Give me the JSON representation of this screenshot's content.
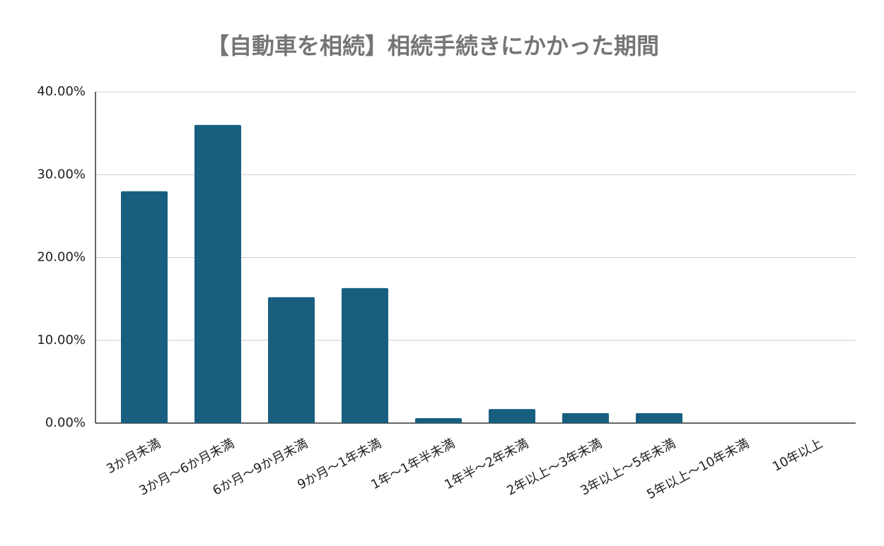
{
  "chart_data": {
    "type": "bar",
    "title": "【自動車を相続】相続手続きにかかった期間",
    "categories": [
      "3か月未満",
      "3か月〜6か月未満",
      "6か月〜9か月未満",
      "9か月〜1年未満",
      "1年〜1年半未満",
      "1年半〜2年未満",
      "2年以上〜3年未満",
      "3年以上〜5年未満",
      "5年以上〜10年未満",
      "10年以上"
    ],
    "values": [
      28,
      36,
      15.2,
      16.3,
      0.6,
      1.7,
      1.2,
      1.2,
      0,
      0
    ],
    "color": "#185f7f",
    "ylim": [
      0,
      40
    ],
    "yticks": [
      {
        "value": 0,
        "label": "0.00%"
      },
      {
        "value": 10,
        "label": "10.00%"
      },
      {
        "value": 20,
        "label": "20.00%"
      },
      {
        "value": 30,
        "label": "30.00%"
      },
      {
        "value": 40,
        "label": "40.00%"
      }
    ],
    "grid": true
  }
}
